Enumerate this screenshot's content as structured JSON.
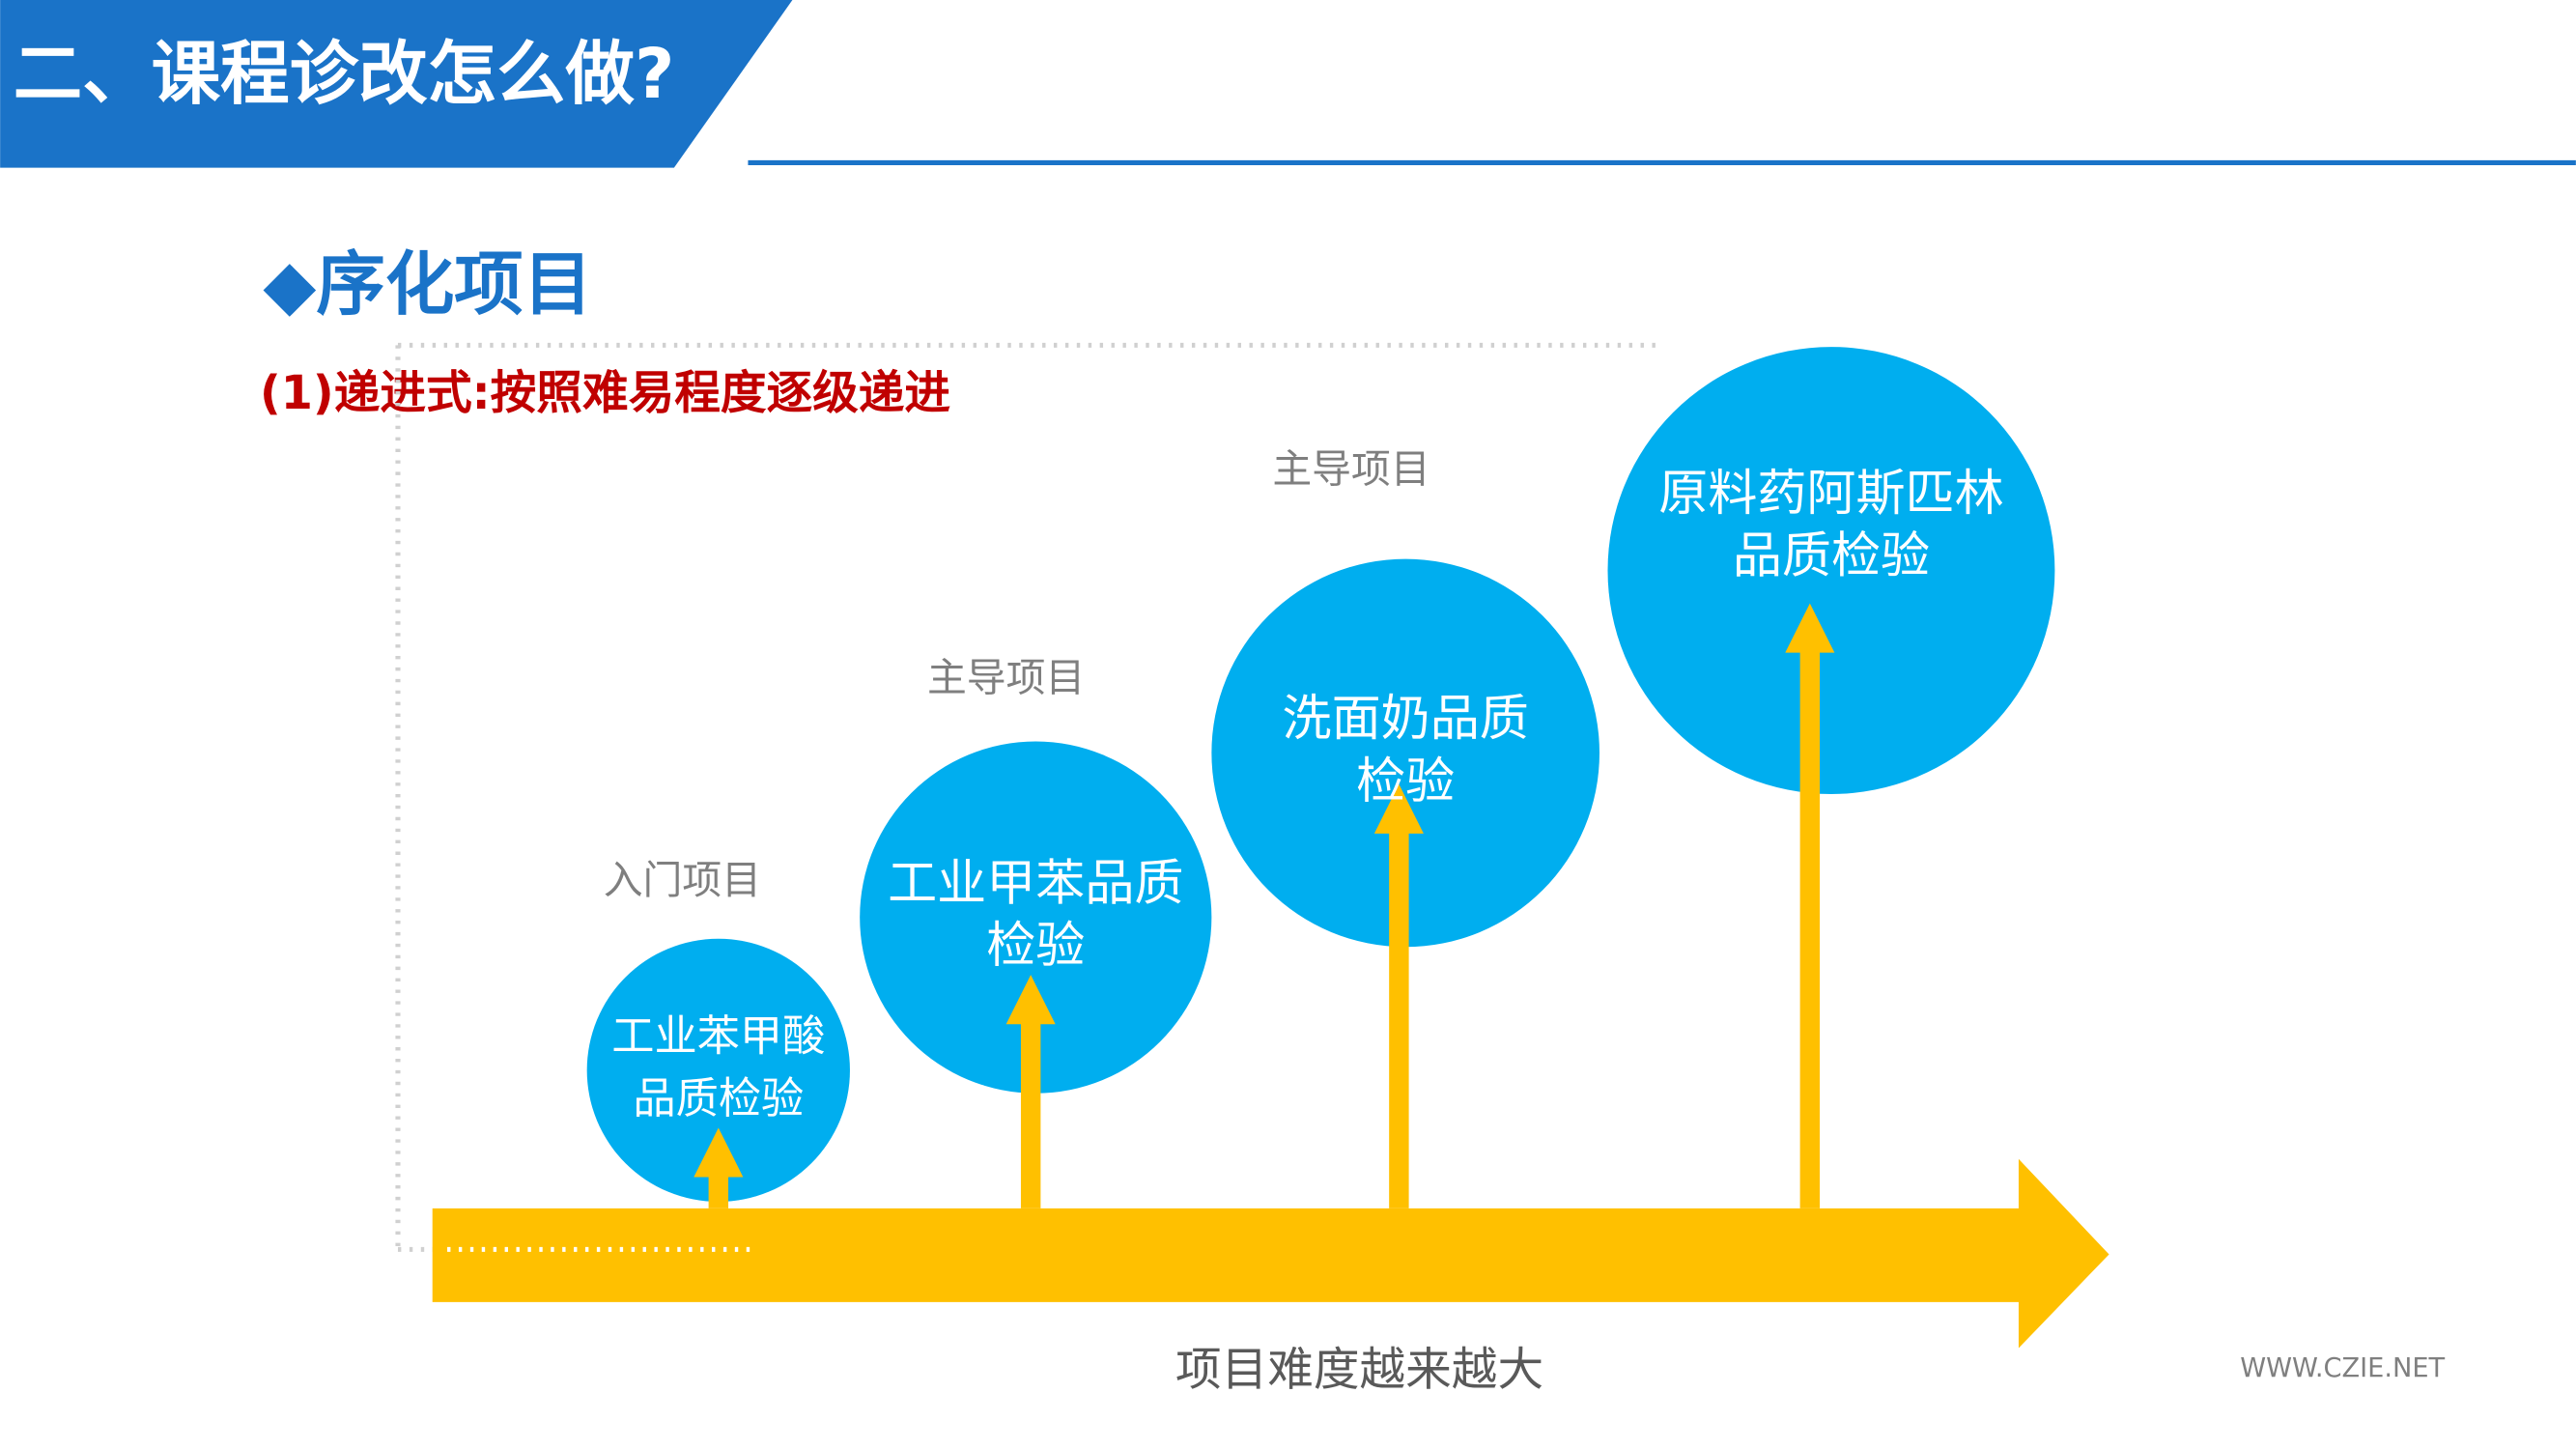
{
  "header": {
    "title": "二、课程诊改怎么做?"
  },
  "section": {
    "heading": "◆序化项目",
    "subheading": "(1)递进式:按照难易程度逐级递进"
  },
  "items": [
    {
      "level": "入门项目",
      "lines": [
        "工业苯甲酸",
        "品质检验"
      ]
    },
    {
      "level": "主导项目",
      "lines": [
        "工业甲苯品质",
        "检验"
      ]
    },
    {
      "level": "主导项目",
      "lines": [
        "洗面奶品质",
        "检验"
      ]
    },
    {
      "lines": [
        "原料药阿斯匹林",
        "品质检验"
      ]
    }
  ],
  "axis_label": "项目难度越来越大",
  "watermark": "WWW.CZIE.NET"
}
